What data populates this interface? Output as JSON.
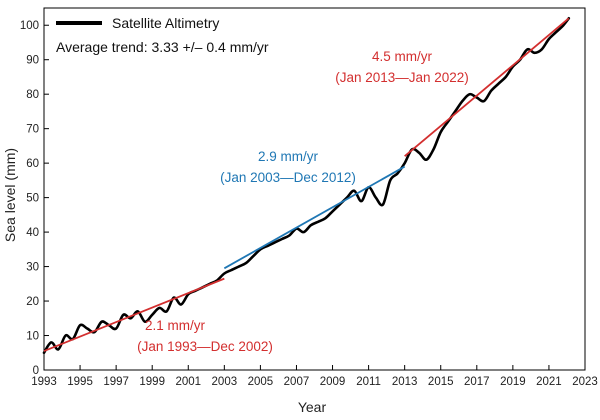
{
  "chart_data": {
    "type": "line",
    "xlabel": "Year",
    "ylabel": "Sea level (mm)",
    "xlim": [
      1993,
      2023
    ],
    "ylim": [
      0,
      105
    ],
    "x_ticks": [
      "1993",
      "1995",
      "1997",
      "1999",
      "2001",
      "2003",
      "2005",
      "2007",
      "2009",
      "2011",
      "2013",
      "2015",
      "2017",
      "2019",
      "2021",
      "2023"
    ],
    "y_ticks": [
      "0",
      "10",
      "20",
      "30",
      "40",
      "50",
      "60",
      "70",
      "80",
      "90",
      "100"
    ],
    "grid": false,
    "legend": {
      "label": "Satellite Altimetry",
      "subtitle": "Average trend: 3.33 +/– 0.4 mm/yr",
      "placement": "top-left"
    },
    "series": [
      {
        "name": "Satellite Altimetry",
        "color": "#000000",
        "x": [
          1993.0,
          1993.4,
          1993.8,
          1994.2,
          1994.6,
          1995.0,
          1995.4,
          1995.8,
          1996.2,
          1996.6,
          1997.0,
          1997.4,
          1997.8,
          1998.2,
          1998.6,
          1999.0,
          1999.4,
          1999.8,
          2000.2,
          2000.6,
          2001.0,
          2001.4,
          2001.8,
          2002.2,
          2002.6,
          2003.0,
          2003.4,
          2003.8,
          2004.2,
          2004.6,
          2005.0,
          2005.4,
          2005.8,
          2006.2,
          2006.6,
          2007.0,
          2007.4,
          2007.8,
          2008.2,
          2008.6,
          2009.0,
          2009.4,
          2009.8,
          2010.2,
          2010.6,
          2011.0,
          2011.4,
          2011.8,
          2012.2,
          2012.6,
          2013.0,
          2013.4,
          2013.8,
          2014.2,
          2014.6,
          2015.0,
          2015.4,
          2015.8,
          2016.2,
          2016.6,
          2017.0,
          2017.4,
          2017.8,
          2018.2,
          2018.6,
          2019.0,
          2019.4,
          2019.8,
          2020.2,
          2020.6,
          2021.0,
          2021.4,
          2021.8,
          2022.1
        ],
        "y": [
          5,
          8,
          6,
          10,
          9,
          13,
          12,
          11,
          14,
          13,
          12,
          16,
          15,
          17,
          14,
          16,
          18,
          17,
          21,
          19,
          22,
          23,
          24,
          25,
          26,
          28,
          29,
          30,
          31,
          33,
          35,
          36,
          37,
          38,
          39,
          41,
          40,
          42,
          43,
          44,
          46,
          48,
          50,
          52,
          49,
          53,
          50,
          48,
          55,
          57,
          60,
          64,
          63,
          61,
          64,
          69,
          72,
          75,
          78,
          80,
          79,
          78,
          81,
          83,
          85,
          88,
          90,
          93,
          92,
          93,
          96,
          98,
          100,
          102
        ]
      }
    ],
    "trends": [
      {
        "label": "2.1 mm/yr",
        "period": "(Jan 1993—Dec 2002)",
        "color": "#d32f2f",
        "x": [
          1993.0,
          2003.0
        ],
        "y": [
          5.5,
          26.5
        ]
      },
      {
        "label": "2.9 mm/yr",
        "period": "(Jan 2003—Dec 2012)",
        "color": "#1f77b4",
        "x": [
          2003.0,
          2013.0
        ],
        "y": [
          29.5,
          59.0
        ]
      },
      {
        "label": "4.5 mm/yr",
        "period": "(Jan 2013—Jan 2022)",
        "color": "#d32f2f",
        "x": [
          2013.0,
          2022.1
        ],
        "y": [
          62.0,
          102.0
        ]
      }
    ]
  }
}
